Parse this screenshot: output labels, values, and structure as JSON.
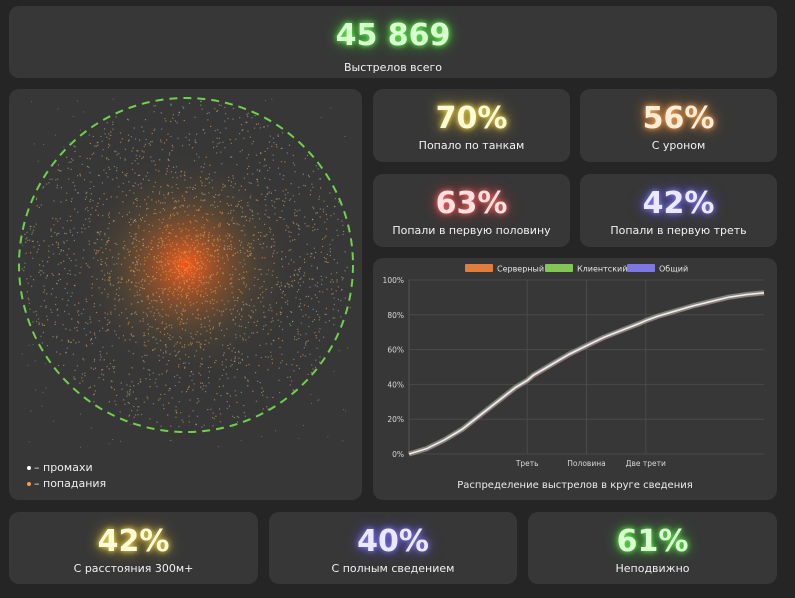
{
  "total": {
    "value": "45 869",
    "label": "Выстрелов всего"
  },
  "stats": [
    {
      "value": "70%",
      "label": "Попало по танкам"
    },
    {
      "value": "56%",
      "label": "С уроном"
    },
    {
      "value": "63%",
      "label": "Попали в первую половину"
    },
    {
      "value": "42%",
      "label": "Попали в первую треть"
    }
  ],
  "bottom_stats": [
    {
      "value": "42%",
      "label": "С расстояния 300м+"
    },
    {
      "value": "40%",
      "label": "С полным сведением"
    },
    {
      "value": "61%",
      "label": "Неподвижно"
    }
  ],
  "scatter": {
    "legend": [
      {
        "label": "– промахи",
        "color": "#ffffff"
      },
      {
        "label": "– попадания",
        "color": "#ff9a4a"
      }
    ],
    "circle_color": "#6fd14a"
  },
  "chart_data": {
    "type": "line",
    "title": "Распределение выстрелов в круге сведения",
    "legend_position": "top",
    "x": [
      0,
      0.05,
      0.1,
      0.15,
      0.2,
      0.25,
      0.3,
      0.333,
      0.35,
      0.4,
      0.45,
      0.5,
      0.55,
      0.6,
      0.65,
      0.667,
      0.7,
      0.75,
      0.8,
      0.85,
      0.9,
      0.95,
      1.0
    ],
    "x_ticks": [
      {
        "x": 0.333,
        "label": "Треть"
      },
      {
        "x": 0.5,
        "label": "Половина"
      },
      {
        "x": 0.667,
        "label": "Две трети"
      }
    ],
    "y_ticks": [
      "0%",
      "20%",
      "40%",
      "60%",
      "80%",
      "100%"
    ],
    "ylim": [
      0,
      100
    ],
    "series": [
      {
        "name": "Серверный",
        "color": "#ff8a3d",
        "values": [
          0,
          3,
          8,
          14,
          22,
          30,
          38,
          42,
          45,
          51,
          57,
          62,
          67,
          71,
          75,
          76.5,
          79,
          82,
          85,
          87.5,
          90,
          91.5,
          92.5
        ]
      },
      {
        "name": "Клиентский",
        "color": "#8fe05a",
        "values": [
          0,
          3.2,
          8.3,
          14.5,
          22.5,
          30.5,
          38.5,
          42.5,
          45.5,
          51.5,
          57.5,
          62.5,
          67.3,
          71.3,
          75.3,
          76.8,
          79.3,
          82.3,
          85.3,
          87.8,
          90.2,
          91.7,
          92.7
        ]
      },
      {
        "name": "Общий",
        "color": "#8a84ff",
        "values": [
          0,
          3.1,
          8.1,
          14.2,
          22.2,
          30.2,
          38.2,
          42.2,
          45.2,
          51.2,
          57.2,
          62.2,
          67.1,
          71.1,
          75.1,
          76.6,
          79.1,
          82.1,
          85.1,
          87.6,
          90.1,
          91.6,
          92.6
        ]
      }
    ]
  }
}
